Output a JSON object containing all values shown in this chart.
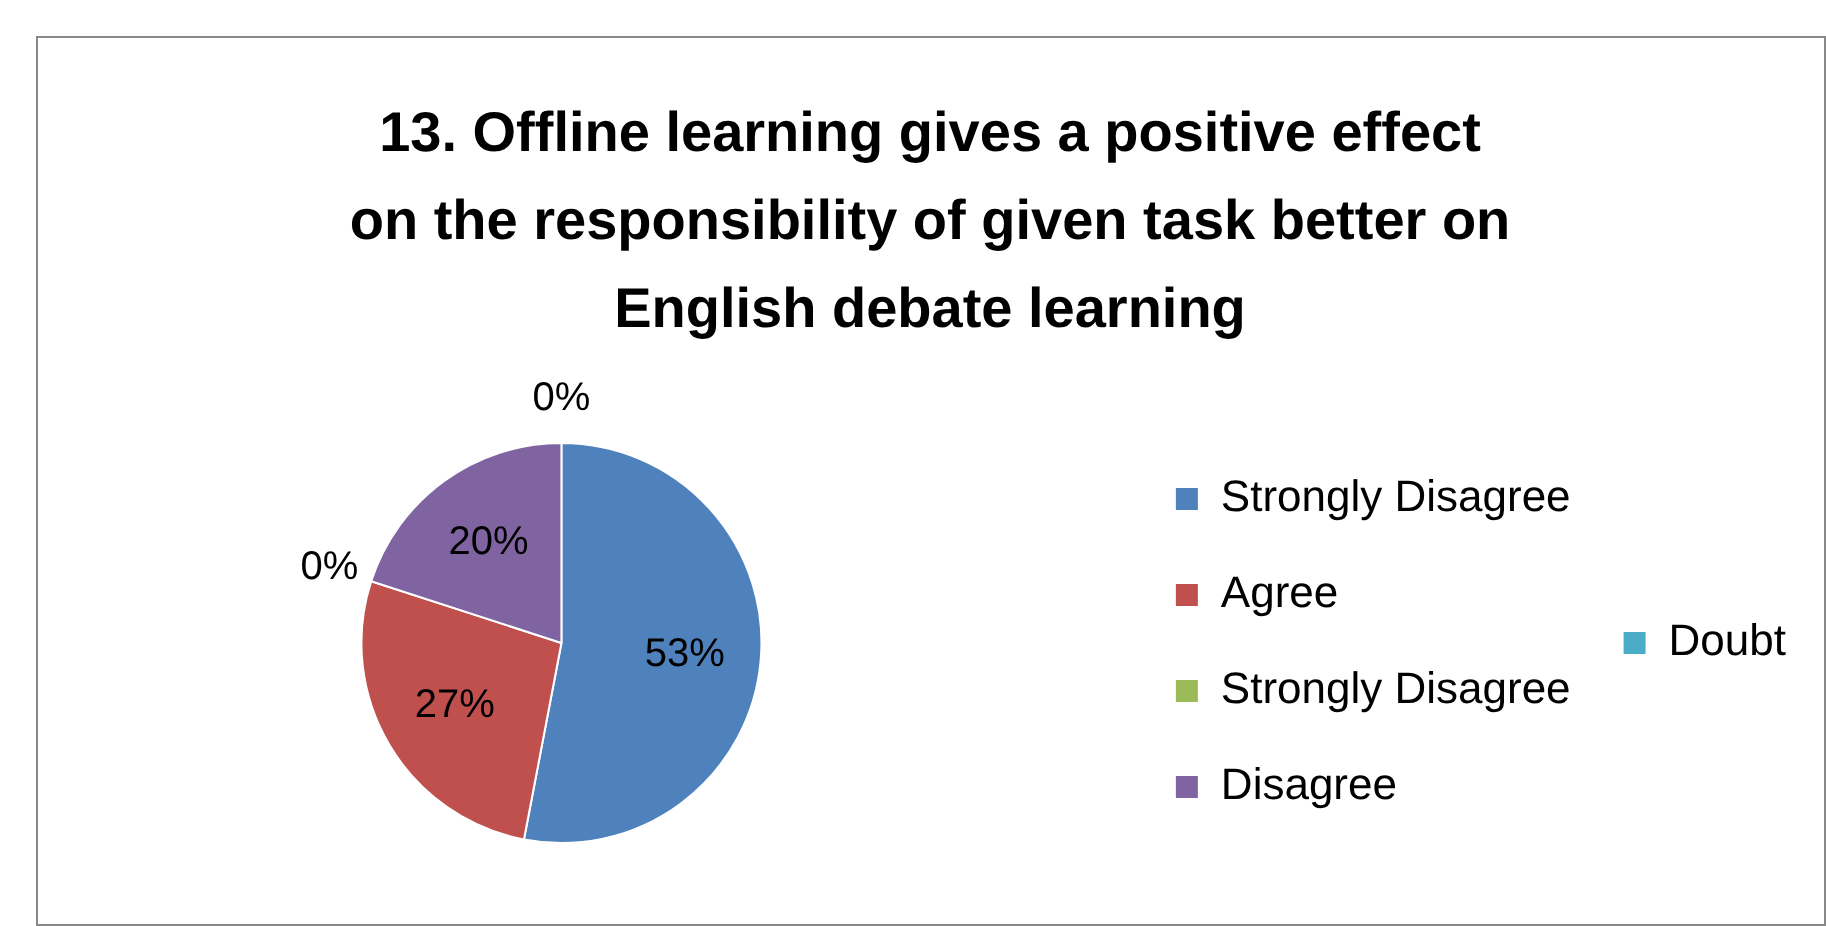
{
  "chart_data": {
    "type": "pie",
    "title": "13. Offline learning gives a positive effect on the responsibility of given task better on English debate learning",
    "categories": [
      "Strongly Disagree",
      "Agree",
      "Strongly Disagree",
      "Disagree",
      "Doubt"
    ],
    "values": [
      53,
      27,
      0,
      20,
      0
    ],
    "colors": [
      "#4f81bd",
      "#c0504d",
      "#9bbb59",
      "#8064a2",
      "#4bacc6"
    ],
    "value_labels": [
      "53%",
      "27%",
      "0%",
      "20%",
      "0%"
    ],
    "legend": "right"
  }
}
